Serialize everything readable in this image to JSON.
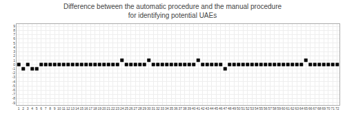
{
  "chart_data": {
    "type": "scatter",
    "title": "Difference between the automatic procedure and the manual procedure\nfor identifying potential UAEs",
    "x": [
      1,
      2,
      3,
      4,
      5,
      6,
      7,
      8,
      9,
      10,
      11,
      12,
      13,
      14,
      15,
      16,
      17,
      18,
      19,
      20,
      21,
      22,
      23,
      24,
      25,
      26,
      27,
      28,
      29,
      30,
      31,
      32,
      33,
      34,
      35,
      36,
      37,
      38,
      39,
      40,
      41,
      42,
      43,
      44,
      45,
      46,
      47,
      48,
      49,
      50,
      51,
      52,
      53,
      54,
      55,
      56,
      57,
      58,
      59,
      60,
      61,
      62,
      63,
      64,
      65,
      66,
      67,
      68,
      69,
      70,
      71,
      72
    ],
    "values": [
      0,
      -1,
      0,
      -1,
      -1,
      0,
      0,
      0,
      0,
      0,
      0,
      0,
      0,
      0,
      0,
      0,
      0,
      0,
      0,
      0,
      0,
      0,
      0,
      1,
      0,
      0,
      0,
      0,
      0,
      1,
      0,
      0,
      0,
      0,
      0,
      0,
      0,
      0,
      0,
      0,
      1,
      0,
      0,
      0,
      0,
      0,
      -1,
      0,
      0,
      0,
      0,
      0,
      0,
      0,
      0,
      0,
      0,
      0,
      0,
      0,
      0,
      0,
      0,
      0,
      1,
      0,
      0,
      0,
      0,
      0,
      0,
      0
    ],
    "color": "#000000",
    "marker": "square",
    "xlim": [
      0.5,
      72.5
    ],
    "xticks": [
      1,
      2,
      3,
      4,
      5,
      6,
      7,
      8,
      9,
      10,
      11,
      12,
      13,
      14,
      15,
      16,
      17,
      18,
      19,
      20,
      21,
      22,
      23,
      24,
      25,
      26,
      27,
      28,
      29,
      30,
      31,
      32,
      33,
      34,
      35,
      36,
      37,
      38,
      39,
      40,
      41,
      42,
      43,
      44,
      45,
      46,
      47,
      48,
      49,
      50,
      51,
      52,
      53,
      54,
      55,
      56,
      57,
      58,
      59,
      60,
      61,
      62,
      63,
      64,
      65,
      66,
      67,
      68,
      69,
      70,
      71,
      72
    ],
    "ylim": [
      -9.5,
      9.5
    ],
    "yticks": [
      9,
      8,
      7,
      6,
      5,
      4,
      3,
      2,
      1,
      0,
      -1,
      -2,
      -3,
      -4,
      -5,
      -6,
      -7,
      -8,
      -9
    ],
    "grid": true
  }
}
